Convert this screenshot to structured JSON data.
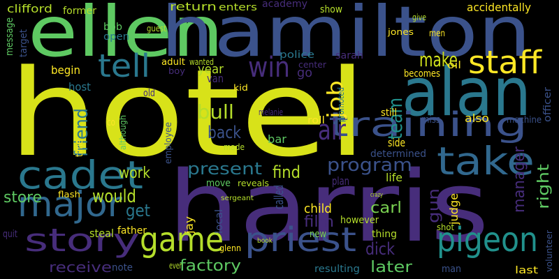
{
  "words": [
    "hotel",
    "harris",
    "ellen",
    "hamilton",
    "alan",
    "training",
    "cadet",
    "take",
    "major",
    "story",
    "game",
    "priest",
    "pigeon",
    "staff",
    "tell",
    "win",
    "make",
    "team",
    "job",
    "bull",
    "back",
    "air",
    "friend",
    "present",
    "find",
    "program",
    "work",
    "would",
    "store",
    "get",
    "carl",
    "child",
    "film",
    "dick",
    "later",
    "factory",
    "receive",
    "manager",
    "right",
    "gun",
    "judge",
    "clifford",
    "return",
    "enters",
    "academy",
    "show",
    "accidentally",
    "former",
    "bob",
    "open",
    "guest",
    "message",
    "target",
    "police",
    "sarah",
    "jones",
    "men",
    "give",
    "begin",
    "host",
    "year",
    "van",
    "adult",
    "wanted",
    "boy",
    "kid",
    "go",
    "oil",
    "becomes",
    "center",
    "old",
    "promoted",
    "still",
    "miss",
    "also",
    "machine",
    "officer",
    "co",
    "although",
    "employee",
    "roll",
    "melanie",
    "bar",
    "made",
    "side",
    "determined",
    "time",
    "move",
    "reveals",
    "called",
    "plan",
    "life",
    "local",
    "however",
    "thing",
    "new",
    "steal",
    "father",
    "jay",
    "glenn",
    "note",
    "man",
    "last",
    "volunteer",
    "shot",
    "quit",
    "flash",
    "sergeant",
    "book",
    "crazy",
    "resulting",
    "ever"
  ]
}
